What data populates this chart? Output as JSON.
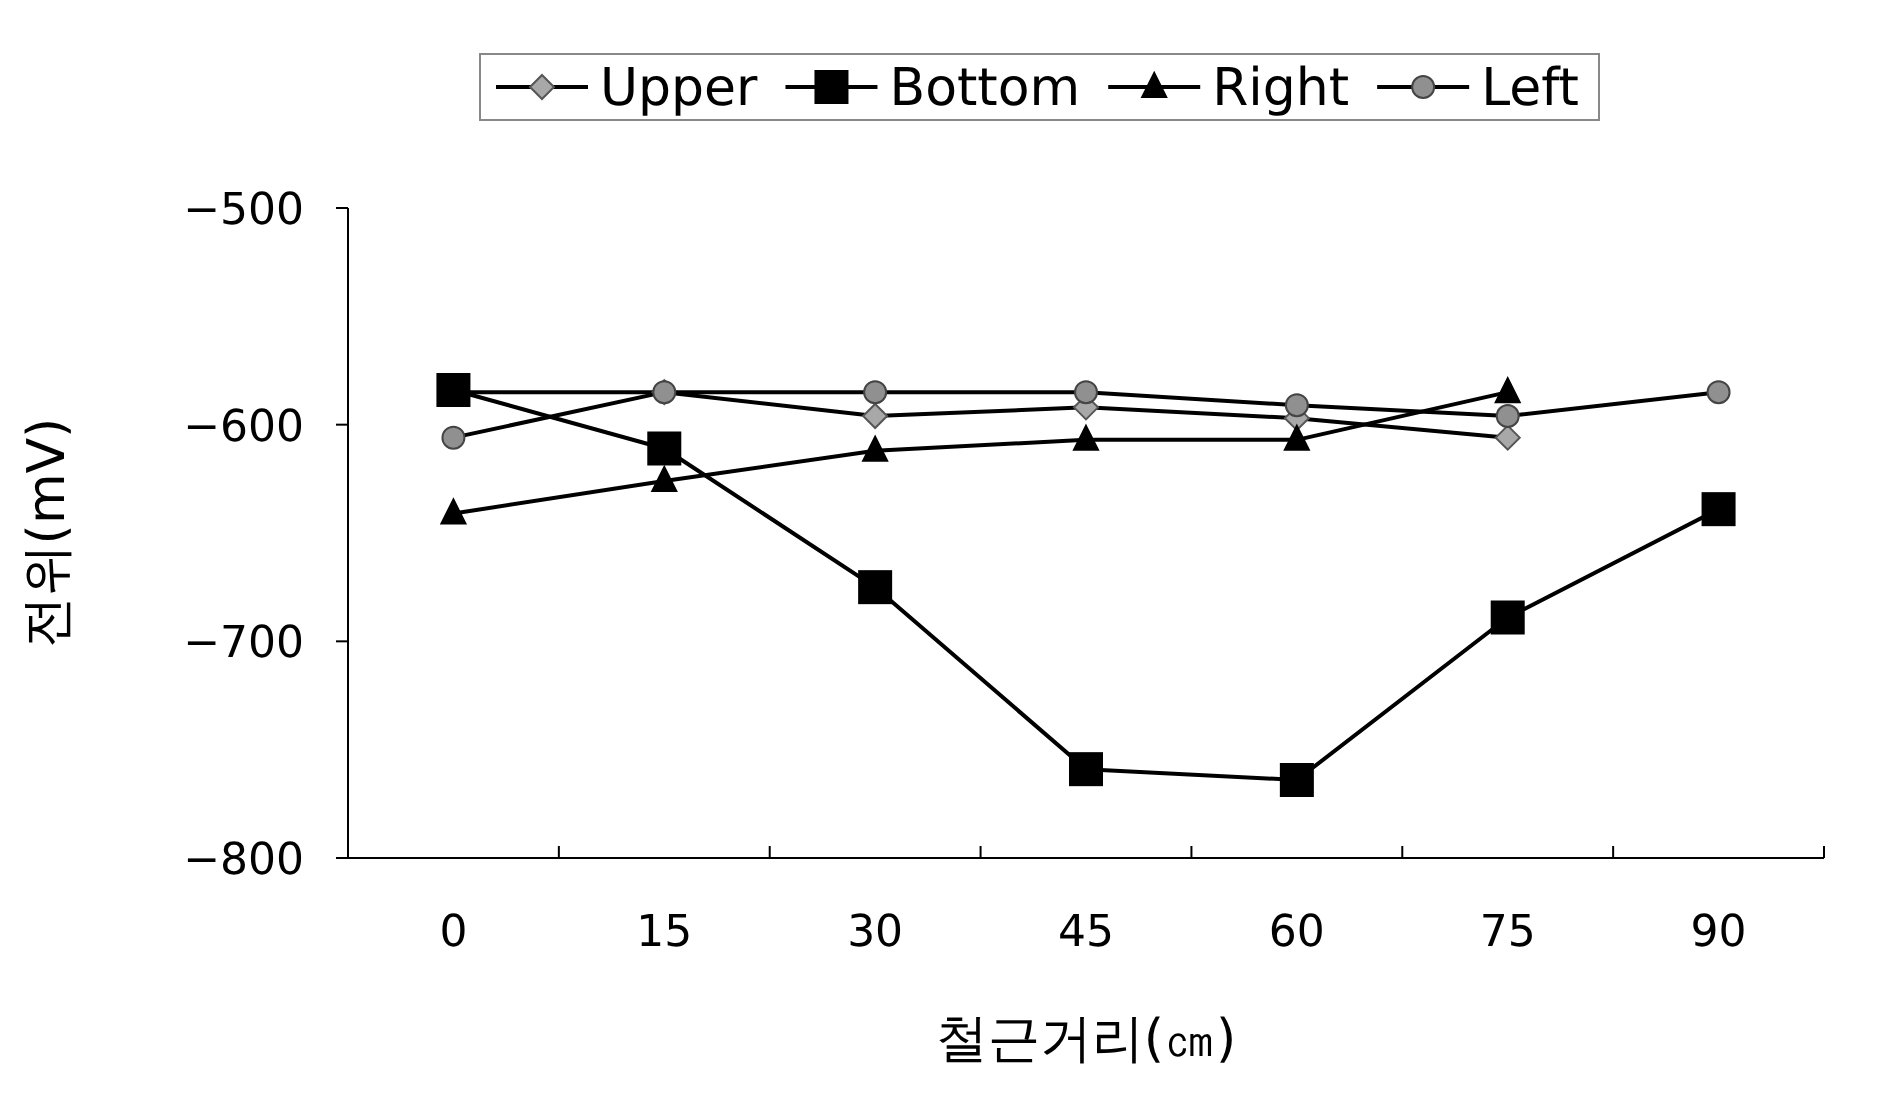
{
  "chart_data": {
    "type": "line",
    "xlabel": "철근거리(㎝)",
    "ylabel": "전위(mV)",
    "categories": [
      "0",
      "15",
      "30",
      "45",
      "60",
      "75",
      "90"
    ],
    "ylim": [
      -800,
      -500
    ],
    "yticks": [
      -800,
      -700,
      -600,
      -500
    ],
    "legend": "top",
    "grid": false,
    "line_style": "solid",
    "series": [
      {
        "name": "Upper",
        "color": "#000000",
        "marker": "diamond",
        "values": [
          -585,
          -585,
          -596,
          -592,
          -597,
          -606,
          null
        ]
      },
      {
        "name": "Bottom",
        "color": "#000000",
        "marker": "square",
        "values": [
          -584,
          -611,
          -675,
          -759,
          -764,
          -689,
          -639
        ]
      },
      {
        "name": "Right",
        "color": "#000000",
        "marker": "triangle",
        "values": [
          -641,
          -626,
          -612,
          -607,
          -607,
          -585,
          null
        ]
      },
      {
        "name": "Left",
        "color": "#000000",
        "marker": "circle",
        "values": [
          -606,
          -585,
          -585,
          -585,
          -591,
          -596,
          -585
        ]
      }
    ]
  }
}
